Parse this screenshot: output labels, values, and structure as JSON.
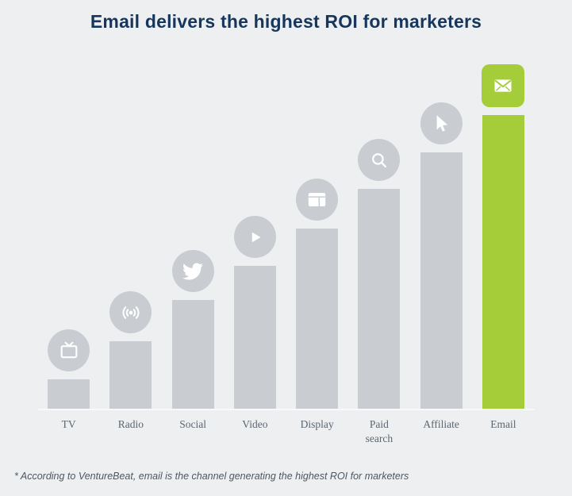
{
  "title": "Email delivers the highest ROI for marketers",
  "footnote": "* According to VentureBeat, email is the channel generating the highest ROI for marketers",
  "colors": {
    "background": "#edeff1",
    "bar": "#c9cdd2",
    "highlight": "#a5cd39",
    "title": "#17365c",
    "label": "#5c6670",
    "footnote": "#4d5863",
    "icon_glyph": "#ffffff"
  },
  "chart_data": {
    "type": "bar",
    "title": "Email delivers the highest ROI for marketers",
    "categories": [
      "TV",
      "Radio",
      "Social",
      "Video",
      "Display",
      "Paid search",
      "Affiliate",
      "Email"
    ],
    "values": [
      37,
      85,
      137,
      180,
      227,
      277,
      323,
      370
    ],
    "value_units": "relative-height-px",
    "highlight_index": 7,
    "icons": [
      "tv-icon",
      "radio-icon",
      "twitter-icon",
      "play-icon",
      "display-icon",
      "search-icon",
      "cursor-icon",
      "email-icon"
    ],
    "xlabel": "",
    "ylabel": "",
    "grid": false,
    "legend": false
  }
}
